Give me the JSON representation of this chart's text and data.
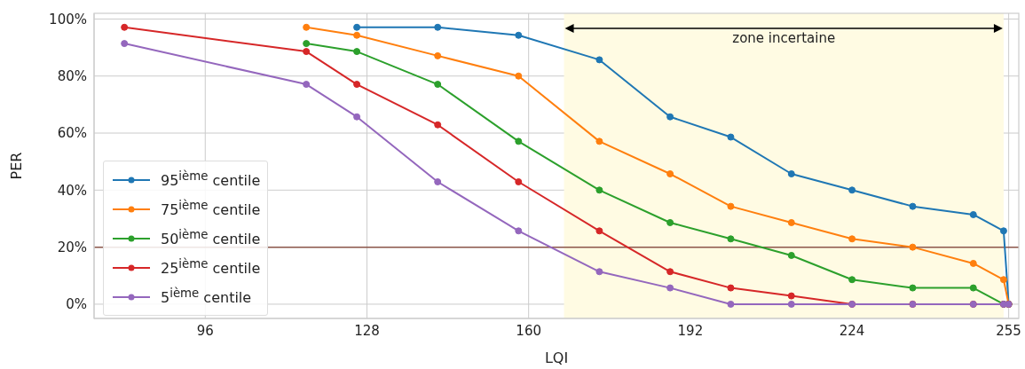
{
  "chart_data": {
    "type": "line",
    "xlabel": "LQI",
    "ylabel": "PER",
    "x": [
      80,
      116,
      126,
      142,
      158,
      174,
      188,
      200,
      212,
      224,
      236,
      248,
      254,
      255
    ],
    "series": [
      {
        "name": "95$^{ième}$ centile",
        "color": "#1f77b4",
        "values": [
          null,
          null,
          97.1,
          97.1,
          94.3,
          85.7,
          65.7,
          58.6,
          45.7,
          40.0,
          34.3,
          31.4,
          25.7,
          0
        ]
      },
      {
        "name": "75$^{ième}$ centile",
        "color": "#ff7f0e",
        "values": [
          null,
          97.1,
          94.3,
          87.1,
          80.0,
          57.1,
          45.7,
          34.3,
          28.6,
          22.9,
          20.0,
          14.3,
          8.6,
          0
        ]
      },
      {
        "name": "50$^{ième}$ centile",
        "color": "#2ca02c",
        "values": [
          null,
          91.4,
          88.6,
          77.1,
          57.1,
          40.0,
          28.6,
          22.9,
          17.1,
          8.6,
          5.7,
          5.7,
          0,
          0
        ]
      },
      {
        "name": "25$^{ième}$ centile",
        "color": "#d62728",
        "values": [
          97.1,
          88.6,
          77.1,
          62.9,
          42.9,
          25.7,
          11.4,
          5.7,
          2.9,
          0,
          0,
          0,
          0,
          0
        ]
      },
      {
        "name": "5$^{ième}$ centile",
        "color": "#9467bd",
        "values": [
          91.4,
          77.1,
          65.7,
          42.9,
          25.7,
          11.4,
          5.7,
          0,
          0,
          0,
          0,
          0,
          0,
          0
        ]
      }
    ],
    "xlim": [
      74,
      257
    ],
    "xticks": [
      96,
      128,
      160,
      192,
      224,
      255
    ],
    "ylim": [
      -5,
      102
    ],
    "yticks": [
      {
        "value": 0,
        "label": "0%"
      },
      {
        "value": 20,
        "label": "20%"
      },
      {
        "value": 40,
        "label": "40%"
      },
      {
        "value": 60,
        "label": "60%"
      },
      {
        "value": 80,
        "label": "80%"
      },
      {
        "value": 100,
        "label": "100%"
      }
    ],
    "ref_lines": [
      {
        "axis": "y",
        "value": 20,
        "color": "#8c564b"
      }
    ],
    "bands": [
      {
        "axis": "x",
        "from": 167,
        "to": 254,
        "label": "zone incertaine",
        "color": "#fffbe3"
      }
    ],
    "grid": true,
    "legend": "bottom left",
    "marker": "circle",
    "line_style": "solid"
  }
}
